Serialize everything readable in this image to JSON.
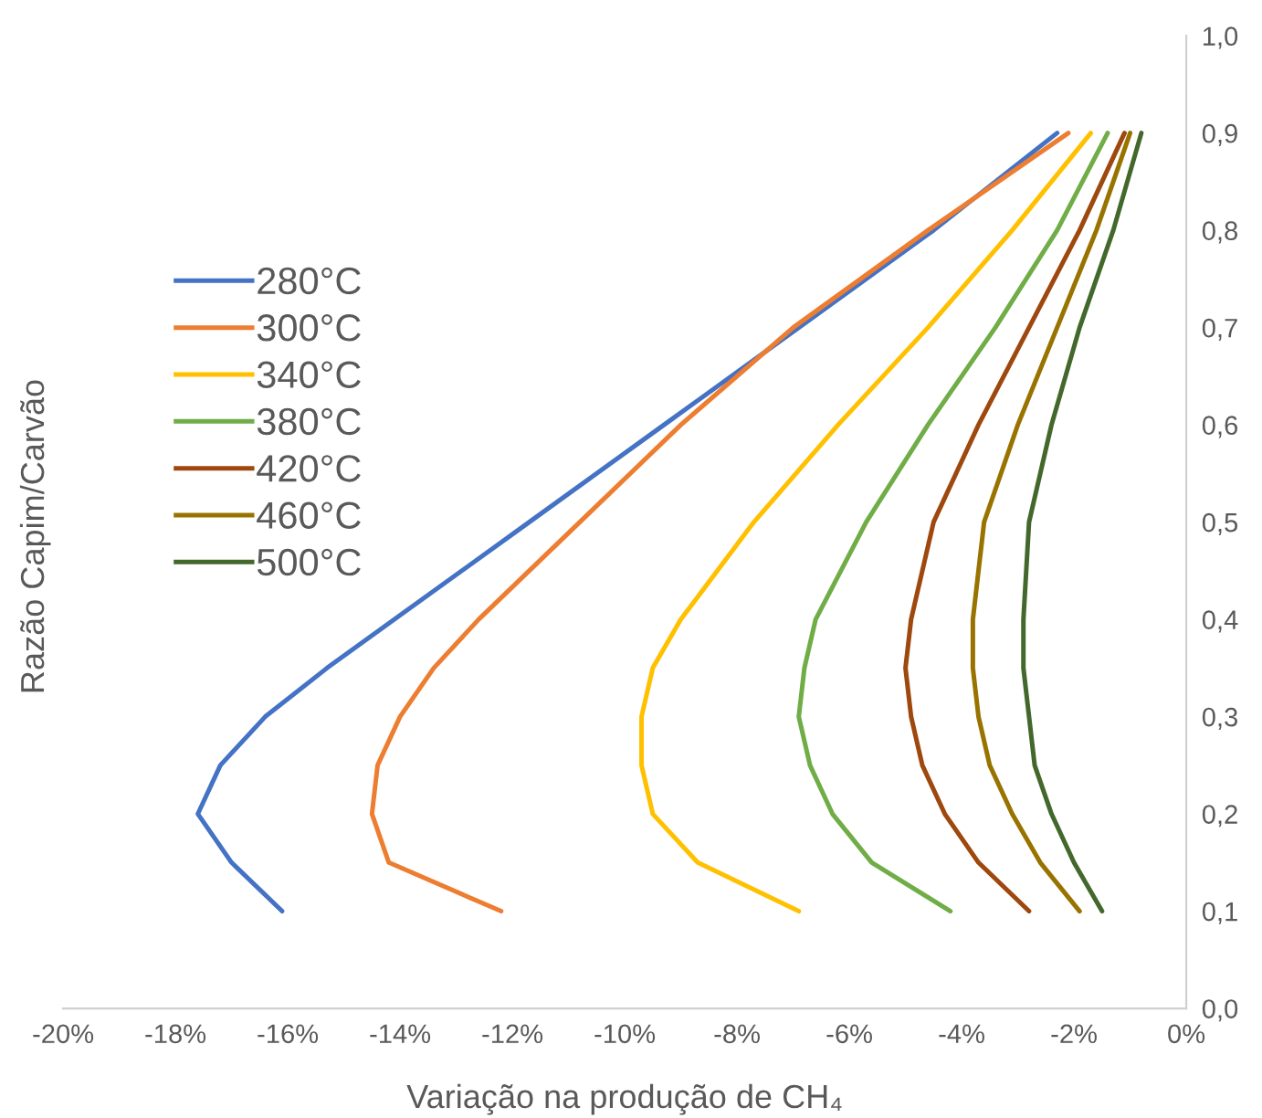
{
  "chart_data": {
    "type": "line",
    "xlabel": "Variação na produção de CH₄",
    "ylabel": "Razão Capim/Carvão",
    "xlim": [
      -20,
      0
    ],
    "ylim": [
      0,
      1
    ],
    "xticks": [
      {
        "value": -20,
        "label": "-20%"
      },
      {
        "value": -18,
        "label": "-18%"
      },
      {
        "value": -16,
        "label": "-16%"
      },
      {
        "value": -14,
        "label": "-14%"
      },
      {
        "value": -12,
        "label": "-12%"
      },
      {
        "value": -10,
        "label": "-10%"
      },
      {
        "value": -8,
        "label": "-8%"
      },
      {
        "value": -6,
        "label": "-6%"
      },
      {
        "value": -4,
        "label": "-4%"
      },
      {
        "value": -2,
        "label": "-2%"
      },
      {
        "value": 0,
        "label": "0%"
      }
    ],
    "yticks": [
      {
        "value": 0,
        "label": "0,0"
      },
      {
        "value": 0.1,
        "label": "0,1"
      },
      {
        "value": 0.2,
        "label": "0,2"
      },
      {
        "value": 0.3,
        "label": "0,3"
      },
      {
        "value": 0.4,
        "label": "0,4"
      },
      {
        "value": 0.5,
        "label": "0,5"
      },
      {
        "value": 0.6,
        "label": "0,6"
      },
      {
        "value": 0.7,
        "label": "0,7"
      },
      {
        "value": 0.8,
        "label": "0,8"
      },
      {
        "value": 0.9,
        "label": "0,9"
      },
      {
        "value": 1,
        "label": "1,0"
      }
    ],
    "grid": false,
    "legend": "left",
    "marker": "none",
    "line_style": "solid",
    "series": [
      {
        "name": "280°C",
        "color": "#4472c4",
        "x": [
          -16.1,
          -17.0,
          -17.6,
          -17.2,
          -16.4,
          -15.3,
          -14.1,
          -11.7,
          -9.3,
          -6.9,
          -4.5,
          -2.3
        ],
        "values": [
          0.1,
          0.15,
          0.2,
          0.25,
          0.3,
          0.35,
          0.4,
          0.5,
          0.6,
          0.7,
          0.8,
          0.9
        ]
      },
      {
        "name": "300°C",
        "color": "#ed7d31",
        "x": [
          -12.2,
          -14.2,
          -14.5,
          -14.4,
          -14.0,
          -13.4,
          -12.6,
          -10.8,
          -9.0,
          -7.0,
          -4.6,
          -2.1
        ],
        "values": [
          0.1,
          0.15,
          0.2,
          0.25,
          0.3,
          0.35,
          0.4,
          0.5,
          0.6,
          0.7,
          0.8,
          0.9
        ]
      },
      {
        "name": "340°C",
        "color": "#ffc000",
        "x": [
          -6.9,
          -8.7,
          -9.5,
          -9.7,
          -9.7,
          -9.5,
          -9.0,
          -7.7,
          -6.2,
          -4.6,
          -3.1,
          -1.7
        ],
        "values": [
          0.1,
          0.15,
          0.2,
          0.25,
          0.3,
          0.35,
          0.4,
          0.5,
          0.6,
          0.7,
          0.8,
          0.9
        ]
      },
      {
        "name": "380°C",
        "color": "#70ad47",
        "x": [
          -4.2,
          -5.6,
          -6.3,
          -6.7,
          -6.9,
          -6.8,
          -6.6,
          -5.7,
          -4.6,
          -3.4,
          -2.3,
          -1.4
        ],
        "values": [
          0.1,
          0.15,
          0.2,
          0.25,
          0.3,
          0.35,
          0.4,
          0.5,
          0.6,
          0.7,
          0.8,
          0.9
        ]
      },
      {
        "name": "420°C",
        "color": "#9e480e",
        "x": [
          -2.8,
          -3.7,
          -4.3,
          -4.7,
          -4.9,
          -5.0,
          -4.9,
          -4.5,
          -3.7,
          -2.8,
          -1.9,
          -1.1
        ],
        "values": [
          0.1,
          0.15,
          0.2,
          0.25,
          0.3,
          0.35,
          0.4,
          0.5,
          0.6,
          0.7,
          0.8,
          0.9
        ]
      },
      {
        "name": "460°C",
        "color": "#997300",
        "x": [
          -1.9,
          -2.6,
          -3.1,
          -3.5,
          -3.7,
          -3.8,
          -3.8,
          -3.6,
          -3.0,
          -2.3,
          -1.6,
          -1.0
        ],
        "values": [
          0.1,
          0.15,
          0.2,
          0.25,
          0.3,
          0.35,
          0.4,
          0.5,
          0.6,
          0.7,
          0.8,
          0.9
        ]
      },
      {
        "name": "500°C",
        "color": "#43682b",
        "x": [
          -1.5,
          -2.0,
          -2.4,
          -2.7,
          -2.8,
          -2.9,
          -2.9,
          -2.8,
          -2.4,
          -1.9,
          -1.3,
          -0.8
        ],
        "values": [
          0.1,
          0.15,
          0.2,
          0.25,
          0.3,
          0.35,
          0.4,
          0.5,
          0.6,
          0.7,
          0.8,
          0.9
        ]
      }
    ]
  }
}
